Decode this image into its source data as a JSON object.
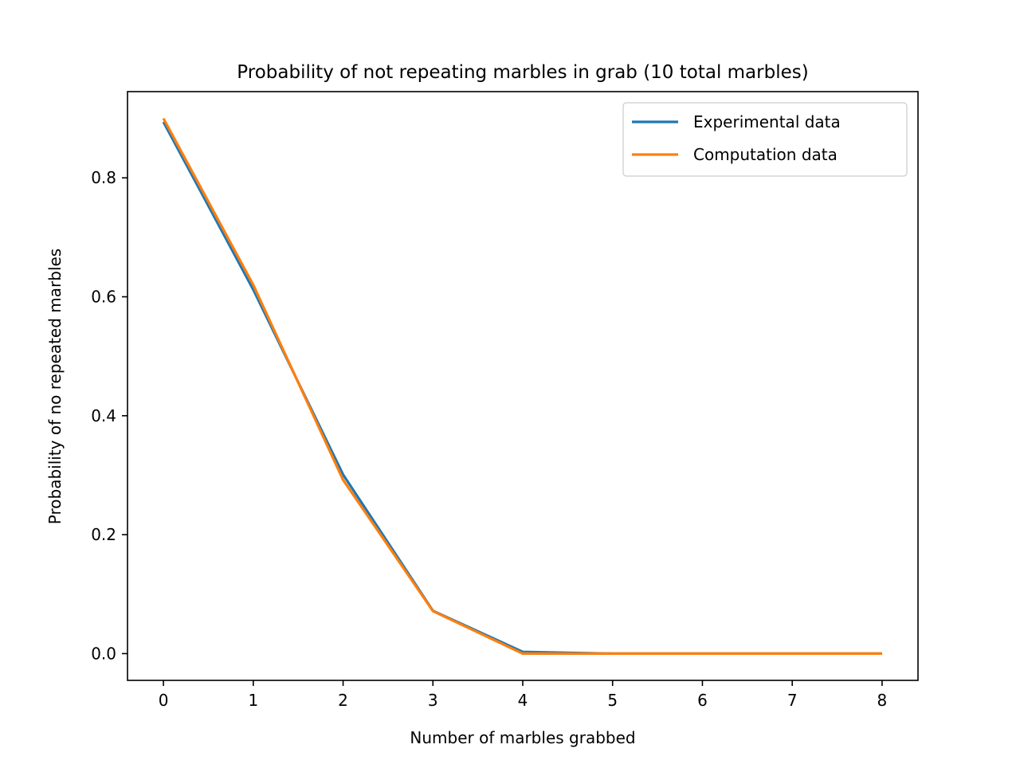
{
  "chart_data": {
    "type": "line",
    "title": "Probability of not repeating marbles in grab (10 total marbles)",
    "xlabel": "Number of marbles grabbed",
    "ylabel": "Probability of no repeated marbles",
    "x": [
      0,
      1,
      2,
      3,
      4,
      5,
      6,
      7,
      8
    ],
    "xlim": [
      -0.4,
      8.4
    ],
    "ylim": [
      -0.045,
      0.945
    ],
    "xticks": [
      0,
      1,
      2,
      3,
      4,
      5,
      6,
      7,
      8
    ],
    "yticks": [
      0.0,
      0.2,
      0.4,
      0.6,
      0.8
    ],
    "ytick_labels": [
      "0.0",
      "0.2",
      "0.4",
      "0.6",
      "0.8"
    ],
    "grid": false,
    "legend_position": "top-right",
    "series": [
      {
        "name": "Experimental data",
        "color": "#1f77b4",
        "values": [
          0.894,
          0.612,
          0.301,
          0.072,
          0.003,
          0.0,
          0.0,
          0.0,
          0.0
        ]
      },
      {
        "name": "Computation data",
        "color": "#ff7f0e",
        "values": [
          0.9,
          0.62,
          0.292,
          0.0715,
          0.0,
          0.0,
          0.0,
          0.0,
          0.0
        ]
      }
    ]
  }
}
